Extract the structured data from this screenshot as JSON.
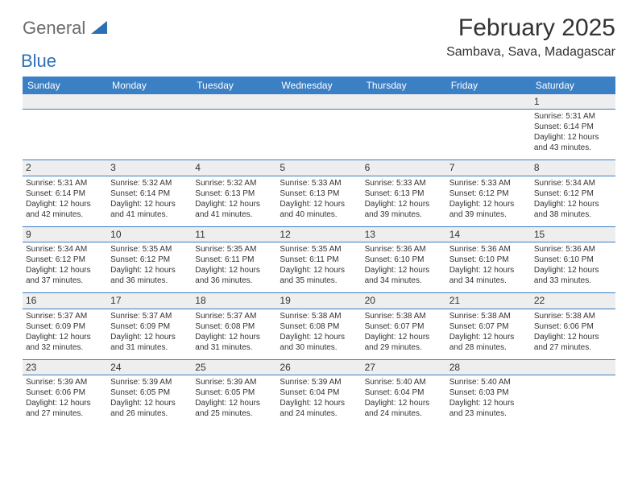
{
  "brand": {
    "text1": "General",
    "text2": "Blue",
    "gray": "#6b6b6b",
    "blue": "#2d6fb5",
    "triangle_fill": "#2d6fb5"
  },
  "title": "February 2025",
  "location": "Sambava, Sava, Madagascar",
  "header_bg": "#3b7fc4",
  "header_text": "#ffffff",
  "grid_line": "#3b7fc4",
  "alt_row_bg": "#eeeeee",
  "text_color": "#333333",
  "day_headers": [
    "Sunday",
    "Monday",
    "Tuesday",
    "Wednesday",
    "Thursday",
    "Friday",
    "Saturday"
  ],
  "weeks": [
    [
      null,
      null,
      null,
      null,
      null,
      null,
      {
        "n": "1",
        "sunrise": "5:31 AM",
        "sunset": "6:14 PM",
        "daylight": "12 hours and 43 minutes."
      }
    ],
    [
      {
        "n": "2",
        "sunrise": "5:31 AM",
        "sunset": "6:14 PM",
        "daylight": "12 hours and 42 minutes."
      },
      {
        "n": "3",
        "sunrise": "5:32 AM",
        "sunset": "6:14 PM",
        "daylight": "12 hours and 41 minutes."
      },
      {
        "n": "4",
        "sunrise": "5:32 AM",
        "sunset": "6:13 PM",
        "daylight": "12 hours and 41 minutes."
      },
      {
        "n": "5",
        "sunrise": "5:33 AM",
        "sunset": "6:13 PM",
        "daylight": "12 hours and 40 minutes."
      },
      {
        "n": "6",
        "sunrise": "5:33 AM",
        "sunset": "6:13 PM",
        "daylight": "12 hours and 39 minutes."
      },
      {
        "n": "7",
        "sunrise": "5:33 AM",
        "sunset": "6:12 PM",
        "daylight": "12 hours and 39 minutes."
      },
      {
        "n": "8",
        "sunrise": "5:34 AM",
        "sunset": "6:12 PM",
        "daylight": "12 hours and 38 minutes."
      }
    ],
    [
      {
        "n": "9",
        "sunrise": "5:34 AM",
        "sunset": "6:12 PM",
        "daylight": "12 hours and 37 minutes."
      },
      {
        "n": "10",
        "sunrise": "5:35 AM",
        "sunset": "6:12 PM",
        "daylight": "12 hours and 36 minutes."
      },
      {
        "n": "11",
        "sunrise": "5:35 AM",
        "sunset": "6:11 PM",
        "daylight": "12 hours and 36 minutes."
      },
      {
        "n": "12",
        "sunrise": "5:35 AM",
        "sunset": "6:11 PM",
        "daylight": "12 hours and 35 minutes."
      },
      {
        "n": "13",
        "sunrise": "5:36 AM",
        "sunset": "6:10 PM",
        "daylight": "12 hours and 34 minutes."
      },
      {
        "n": "14",
        "sunrise": "5:36 AM",
        "sunset": "6:10 PM",
        "daylight": "12 hours and 34 minutes."
      },
      {
        "n": "15",
        "sunrise": "5:36 AM",
        "sunset": "6:10 PM",
        "daylight": "12 hours and 33 minutes."
      }
    ],
    [
      {
        "n": "16",
        "sunrise": "5:37 AM",
        "sunset": "6:09 PM",
        "daylight": "12 hours and 32 minutes."
      },
      {
        "n": "17",
        "sunrise": "5:37 AM",
        "sunset": "6:09 PM",
        "daylight": "12 hours and 31 minutes."
      },
      {
        "n": "18",
        "sunrise": "5:37 AM",
        "sunset": "6:08 PM",
        "daylight": "12 hours and 31 minutes."
      },
      {
        "n": "19",
        "sunrise": "5:38 AM",
        "sunset": "6:08 PM",
        "daylight": "12 hours and 30 minutes."
      },
      {
        "n": "20",
        "sunrise": "5:38 AM",
        "sunset": "6:07 PM",
        "daylight": "12 hours and 29 minutes."
      },
      {
        "n": "21",
        "sunrise": "5:38 AM",
        "sunset": "6:07 PM",
        "daylight": "12 hours and 28 minutes."
      },
      {
        "n": "22",
        "sunrise": "5:38 AM",
        "sunset": "6:06 PM",
        "daylight": "12 hours and 27 minutes."
      }
    ],
    [
      {
        "n": "23",
        "sunrise": "5:39 AM",
        "sunset": "6:06 PM",
        "daylight": "12 hours and 27 minutes."
      },
      {
        "n": "24",
        "sunrise": "5:39 AM",
        "sunset": "6:05 PM",
        "daylight": "12 hours and 26 minutes."
      },
      {
        "n": "25",
        "sunrise": "5:39 AM",
        "sunset": "6:05 PM",
        "daylight": "12 hours and 25 minutes."
      },
      {
        "n": "26",
        "sunrise": "5:39 AM",
        "sunset": "6:04 PM",
        "daylight": "12 hours and 24 minutes."
      },
      {
        "n": "27",
        "sunrise": "5:40 AM",
        "sunset": "6:04 PM",
        "daylight": "12 hours and 24 minutes."
      },
      {
        "n": "28",
        "sunrise": "5:40 AM",
        "sunset": "6:03 PM",
        "daylight": "12 hours and 23 minutes."
      },
      null
    ]
  ],
  "labels": {
    "sunrise": "Sunrise:",
    "sunset": "Sunset:",
    "daylight": "Daylight:"
  }
}
